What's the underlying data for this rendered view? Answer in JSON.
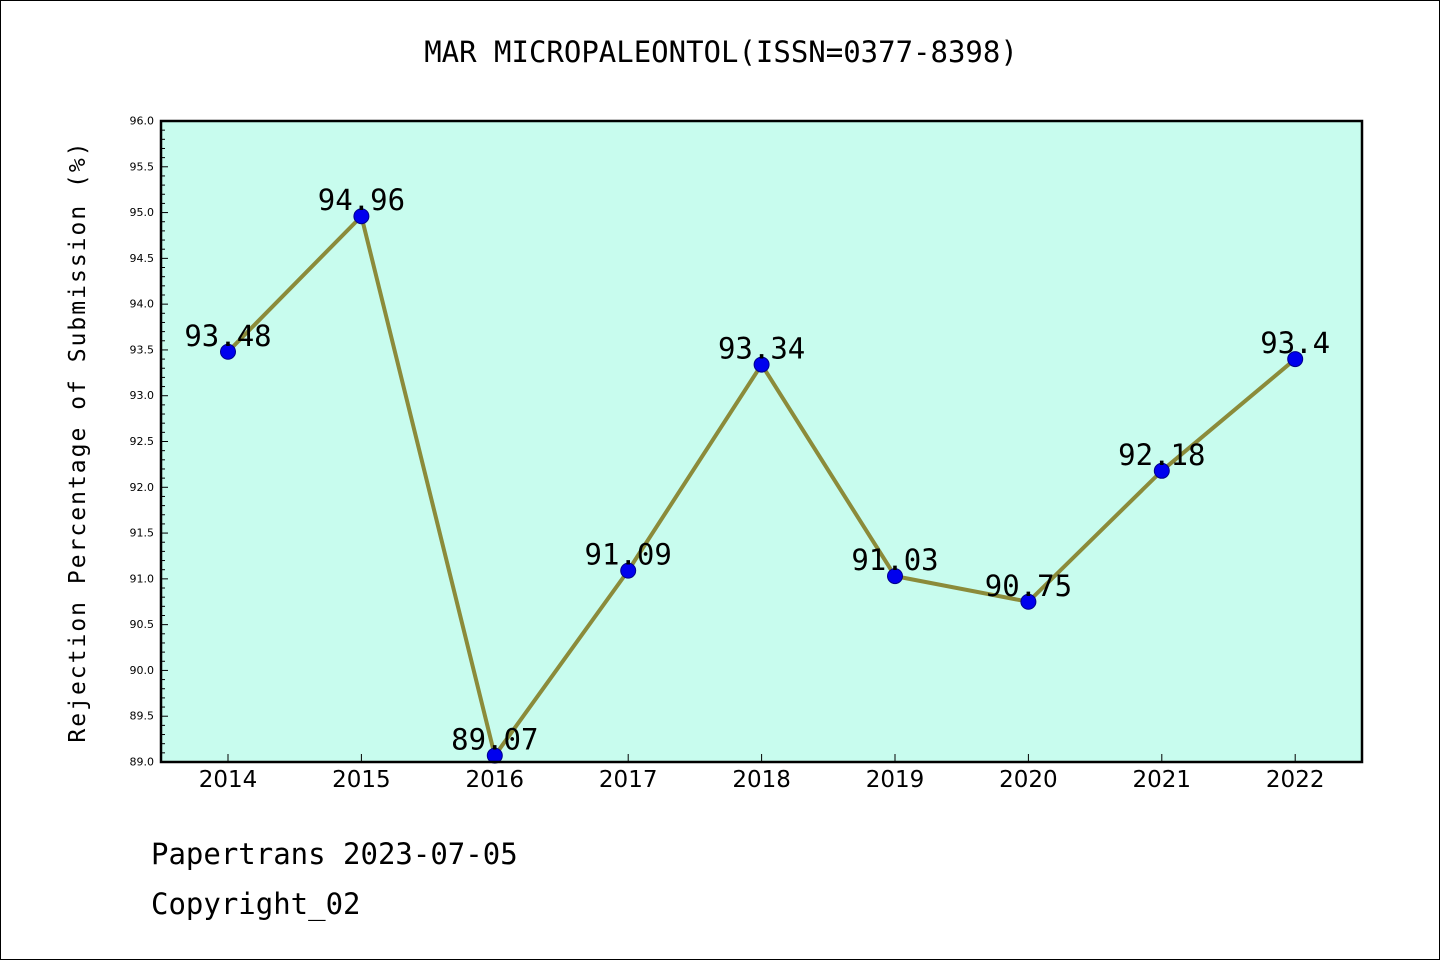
{
  "chart_data": {
    "type": "line",
    "title": "MAR MICROPALEONTOL(ISSN=0377-8398)",
    "ylabel": "Rejection Percentage of Submission (%)",
    "xlabel": "",
    "categories": [
      "2014",
      "2015",
      "2016",
      "2017",
      "2018",
      "2019",
      "2020",
      "2021",
      "2022"
    ],
    "values": [
      93.48,
      94.96,
      89.07,
      91.09,
      93.34,
      91.03,
      90.75,
      92.18,
      93.4
    ],
    "data_labels": [
      "93.48",
      "94.96",
      "89.07",
      "91.09",
      "93.34",
      "91.03",
      "90.75",
      "92.18",
      "93.4"
    ],
    "ylim": [
      89.0,
      96.0
    ],
    "yticks": [
      "89.0",
      "89.5",
      "90.0",
      "90.5",
      "91.0",
      "91.5",
      "92.0",
      "92.5",
      "93.0",
      "93.5",
      "94.0",
      "94.5",
      "95.0",
      "95.5",
      "96.0"
    ],
    "grid": false,
    "colors": {
      "plot_background": "#c8fcee",
      "line": "#8b8b3a",
      "marker": "#0000ee",
      "marker_edge": "#00008b"
    }
  },
  "footer": {
    "date_line": "Papertrans 2023-07-05",
    "copyright_line": "Copyright_02"
  }
}
